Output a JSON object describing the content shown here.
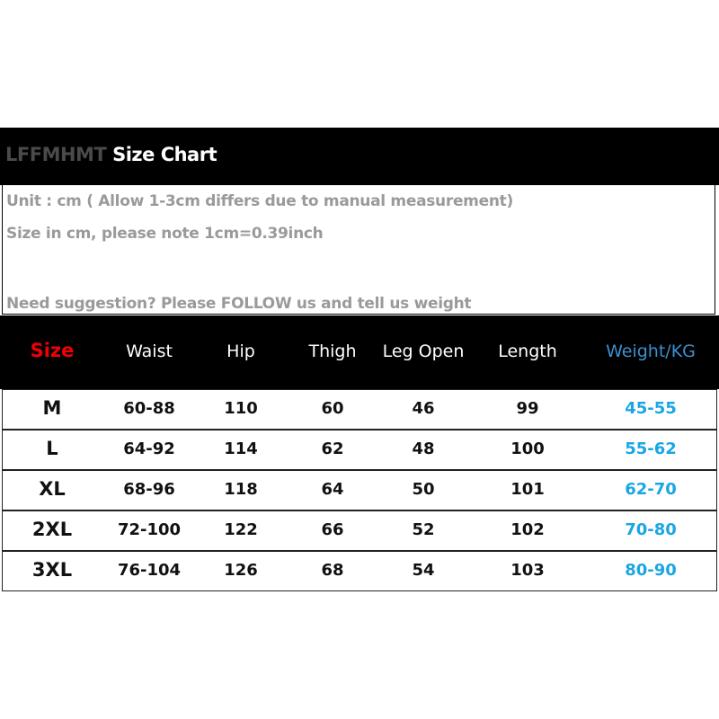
{
  "header": {
    "brand": "LFFMHMT",
    "title": "Size Chart"
  },
  "notes": [
    "Unit : cm ( Allow 1-3cm differs due to manual measurement)",
    "Size in cm, please note 1cm=0.39inch",
    "Need suggestion? Please FOLLOW us and tell us weight"
  ],
  "table": {
    "columns": [
      "Size",
      "Waist",
      "Hip",
      "Thigh",
      "Leg Open",
      "Length",
      "Weight/KG"
    ],
    "rows": [
      [
        "M",
        "60-88",
        "110",
        "60",
        "46",
        "99",
        "45-55"
      ],
      [
        "L",
        "64-92",
        "114",
        "62",
        "48",
        "100",
        "55-62"
      ],
      [
        "XL",
        "68-96",
        "118",
        "64",
        "50",
        "101",
        "62-70"
      ],
      [
        "2XL",
        "72-100",
        "122",
        "66",
        "52",
        "102",
        "70-80"
      ],
      [
        "3XL",
        "76-104",
        "126",
        "68",
        "54",
        "103",
        "80-90"
      ]
    ]
  },
  "colors": {
    "size_header": "#f20000",
    "weight_header": "#3c8fcf",
    "weight_values": "#1aa6e4",
    "brand": "#4a4a4a",
    "notes": "#9a9a9a"
  }
}
